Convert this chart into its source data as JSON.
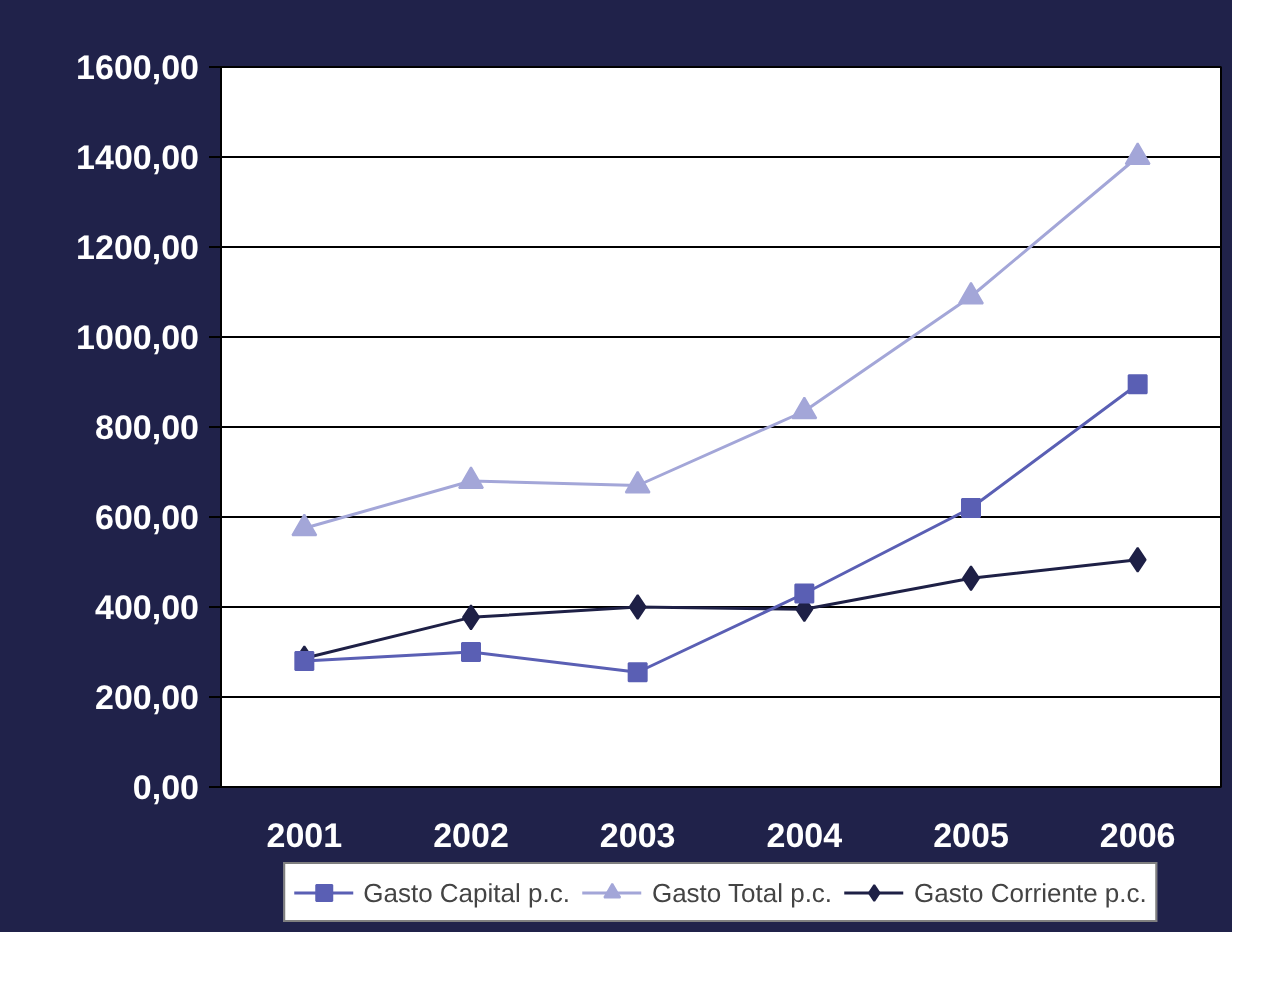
{
  "chart_data": {
    "type": "line",
    "categories": [
      "2001",
      "2002",
      "2003",
      "2004",
      "2005",
      "2006"
    ],
    "series": [
      {
        "name": "Gasto Capital p.c.",
        "color": "#5a5fb4",
        "marker": "square",
        "values": [
          280,
          300,
          255,
          430,
          620,
          895
        ]
      },
      {
        "name": "Gasto Total p.c.",
        "color": "#a3a6d8",
        "marker": "triangle",
        "values": [
          575,
          680,
          670,
          835,
          1090,
          1400
        ]
      },
      {
        "name": "Gasto Corriente p.c.",
        "color": "#1e2046",
        "marker": "diamond",
        "values": [
          286,
          377,
          400,
          395,
          464,
          505
        ]
      }
    ],
    "ylim": [
      0,
      1600
    ],
    "yticks": [
      {
        "value": 0,
        "label": "0,00"
      },
      {
        "value": 200,
        "label": "200,00"
      },
      {
        "value": 400,
        "label": "400,00"
      },
      {
        "value": 600,
        "label": "600,00"
      },
      {
        "value": 800,
        "label": "800,00"
      },
      {
        "value": 1000,
        "label": "1000,00"
      },
      {
        "value": 1200,
        "label": "1200,00"
      },
      {
        "value": 1400,
        "label": "1400,00"
      },
      {
        "value": 1600,
        "label": "1600,00"
      }
    ],
    "grid": "y",
    "legend": "bottom",
    "line_style": "solid"
  }
}
